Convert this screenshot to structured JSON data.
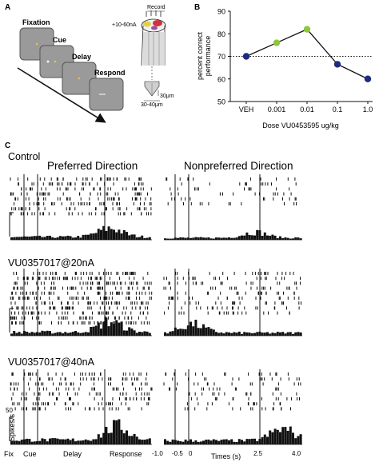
{
  "panel_a": {
    "letter": "A",
    "screens": [
      "Fixation",
      "Cue",
      "Delay",
      "Respond"
    ],
    "record_label": "Record",
    "current_label": "+10-60nA",
    "scale_tip": "30μm",
    "scale_width": "30-40μm"
  },
  "panel_b": {
    "letter": "B",
    "chart_data": {
      "type": "line",
      "categories": [
        "VEH",
        "0.001",
        "0.01",
        "0.1",
        "1.0"
      ],
      "values": [
        70,
        76,
        82,
        66.5,
        60
      ],
      "point_colors": [
        "#1f2a80",
        "#8dc63f",
        "#8dc63f",
        "#1f2a80",
        "#1f2a80"
      ],
      "baseline": 70,
      "ylim": [
        50,
        90
      ],
      "yticks": [
        "50",
        "60",
        "70",
        "80",
        "90"
      ],
      "ylabel_line1": "percent correct",
      "ylabel_line2": "performance",
      "xlabel": "Dose VU0453595 ug/kg"
    }
  },
  "panel_c": {
    "letter": "C",
    "control_label": "Control",
    "preferred_label": "Preferred Direction",
    "nonpreferred_label": "Nonpreferred Direction",
    "cond2_label": "VU0357017@20nA",
    "cond3_label": "VU0357017@40nA",
    "y_scale_value": "50",
    "y_scale_unit": "Spikes/s",
    "left_xlabels": [
      "Fix",
      "Cue",
      "Delay",
      "Response"
    ],
    "right_xticks": [
      "-1.0",
      "-0.5",
      "0",
      "2.5",
      "4.0"
    ],
    "right_xlabel": "Times (s)"
  }
}
